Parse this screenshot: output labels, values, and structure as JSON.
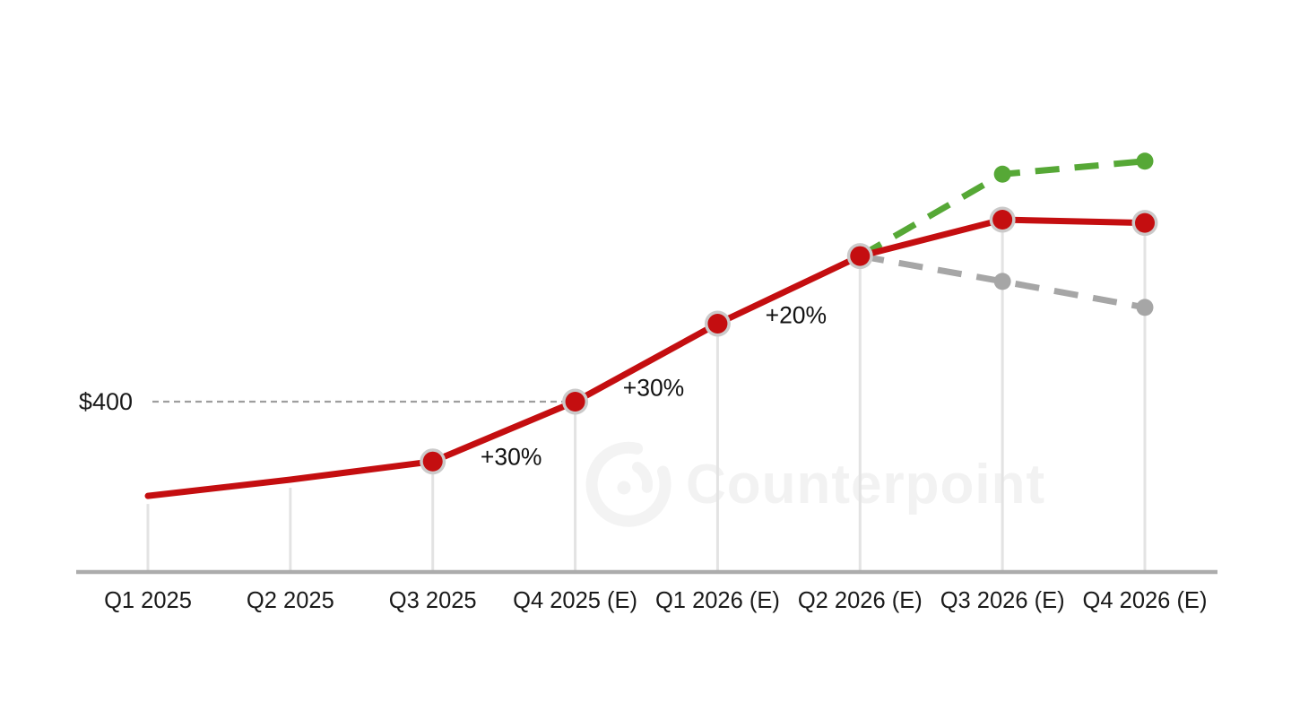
{
  "chart_data": {
    "type": "line",
    "categories": [
      "Q1 2025",
      "Q2 2025",
      "Q3 2025",
      "Q4 2025 (E)",
      "Q1 2026 (E)",
      "Q2 2026 (E)",
      "Q3 2026 (E)",
      "Q4 2026 (E)"
    ],
    "unit": "USD",
    "series": [
      {
        "name": "base-forecast",
        "style": "solid",
        "color": "#c40e10",
        "marker": "ringed-dot",
        "marker_from_index": 2,
        "values": [
          255,
          280,
          308,
          400,
          520,
          624,
          680,
          675
        ]
      },
      {
        "name": "upside-scenario",
        "style": "dashed",
        "color": "#56a836",
        "marker": "dot",
        "values": [
          null,
          null,
          null,
          null,
          null,
          624,
          750,
          770
        ]
      },
      {
        "name": "downside-scenario",
        "style": "dashed",
        "color": "#a6a6a6",
        "marker": "dot",
        "values": [
          null,
          null,
          null,
          null,
          null,
          624,
          585,
          545
        ]
      }
    ],
    "reference_line": {
      "label": "$400",
      "value": 400,
      "to_index": 3
    },
    "growth_labels": [
      {
        "text": "+30%",
        "between": [
          2,
          3
        ]
      },
      {
        "text": "+30%",
        "between": [
          3,
          4
        ]
      },
      {
        "text": "+20%",
        "between": [
          4,
          5
        ]
      }
    ],
    "y_axis": "hidden",
    "grid": "off",
    "legend": "none"
  },
  "watermark": {
    "text": "Counterpoint",
    "logo": "counterpoint-logo"
  },
  "colors": {
    "base_line": "#c40e10",
    "upside_line": "#56a836",
    "downside_line": "#a6a6a6",
    "marker_ring": "#cbcaca",
    "drop_line": "#e3e3e3",
    "axis_line": "#acacac",
    "reference_dash": "#9e9e9e",
    "label_text": "#1a1a1a",
    "watermark": "#f2f2f2"
  }
}
